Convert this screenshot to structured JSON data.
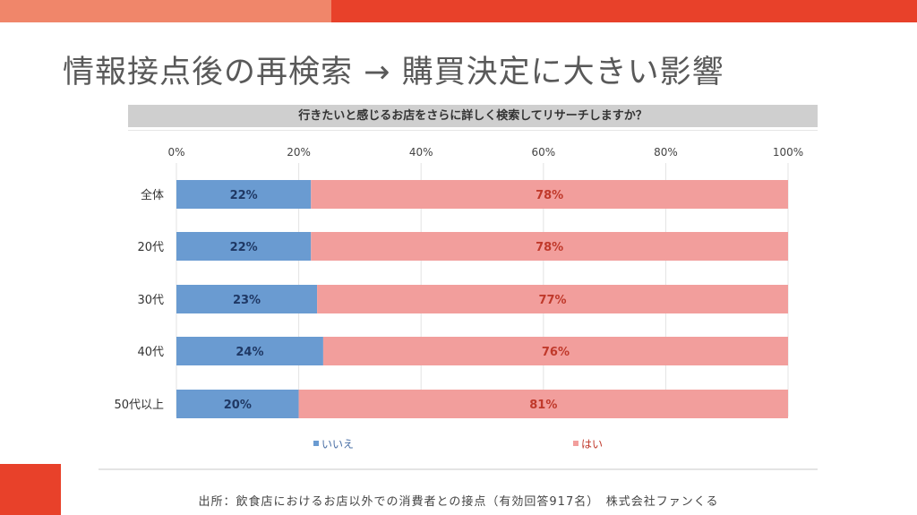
{
  "slide": {
    "title": "情報接点後の再検索 → 購買決定に大きい影響",
    "source": "出所：飲食店におけるお店以外での消費者との接点（有効回答917名）　株式会社ファンくる"
  },
  "colors": {
    "top_left": "#f0866a",
    "accent": "#e8412a",
    "no": "#6a9bd1",
    "yes": "#f29e9c",
    "no_label": "#1f3864",
    "yes_label": "#c0392b"
  },
  "chart_data": {
    "type": "bar",
    "stacked": true,
    "orientation": "horizontal",
    "title": "行きたいと感じるお店をさらに詳しく検索してリサーチしますか？",
    "categories": [
      "全体",
      "20代",
      "30代",
      "40代",
      "50代以上"
    ],
    "series": [
      {
        "name": "いいえ",
        "values": [
          22,
          22,
          23,
          24,
          20
        ]
      },
      {
        "name": "はい",
        "values": [
          78,
          78,
          77,
          76,
          81
        ]
      }
    ],
    "x_ticks": [
      "0%",
      "20%",
      "40%",
      "60%",
      "80%",
      "100%"
    ],
    "xlim": [
      0,
      100
    ],
    "grid": true,
    "legend": "bottom",
    "value_suffix": "%"
  }
}
